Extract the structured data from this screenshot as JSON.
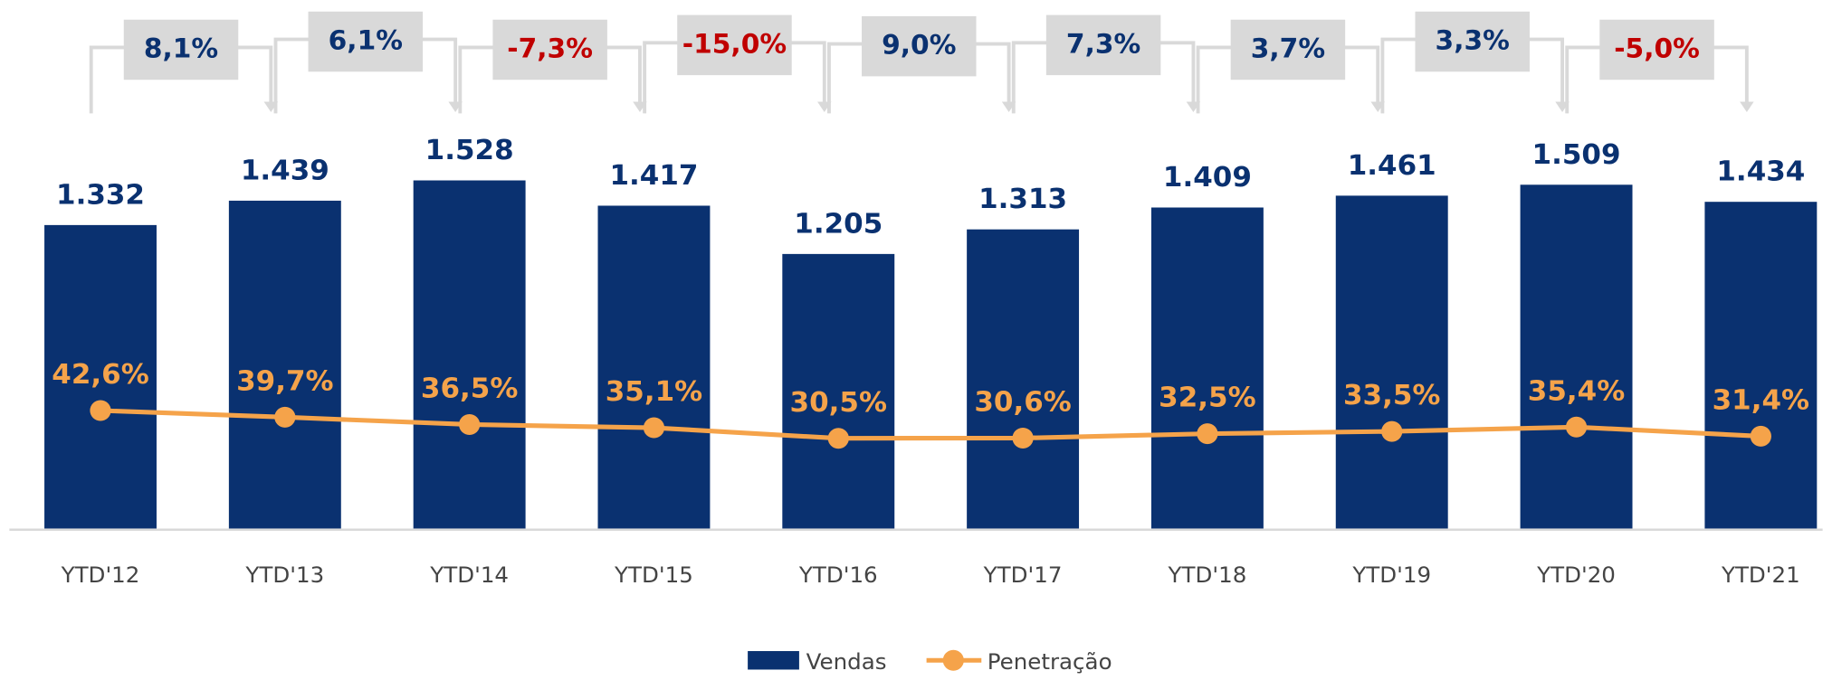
{
  "chart_data": {
    "type": "bar",
    "categories": [
      "YTD'12",
      "YTD'13",
      "YTD'14",
      "YTD'15",
      "YTD'16",
      "YTD'17",
      "YTD'18",
      "YTD'19",
      "YTD'20",
      "YTD'21"
    ],
    "series": [
      {
        "name": "Vendas",
        "color": "#0a3170",
        "values": [
          1332,
          1439,
          1528,
          1417,
          1205,
          1313,
          1409,
          1461,
          1509,
          1434
        ],
        "value_labels": [
          "1.332",
          "1.439",
          "1.528",
          "1.417",
          "1.205",
          "1.313",
          "1.409",
          "1.461",
          "1.509",
          "1.434"
        ]
      },
      {
        "name": "Penetração",
        "color": "#f5a34a",
        "type": "line",
        "axis": "y2",
        "values": [
          42.6,
          39.7,
          36.5,
          35.1,
          30.5,
          30.6,
          32.5,
          33.5,
          35.4,
          31.4
        ],
        "value_labels": [
          "42,6%",
          "39,7%",
          "36,5%",
          "35,1%",
          "30,5%",
          "30,6%",
          "32,5%",
          "33,5%",
          "35,4%",
          "31,4%"
        ]
      }
    ],
    "changes": {
      "values": [
        8.1,
        6.1,
        -7.3,
        -15.0,
        9.0,
        7.3,
        3.7,
        3.3,
        -5.0
      ],
      "value_labels": [
        "8,1%",
        "6,1%",
        "-7,3%",
        "-15,0%",
        "9,0%",
        "7,3%",
        "3,7%",
        "3,3%",
        "-5,0%"
      ],
      "positive_color": "#0a3170",
      "negative_color": "#c00000"
    },
    "legend": "bottom"
  }
}
